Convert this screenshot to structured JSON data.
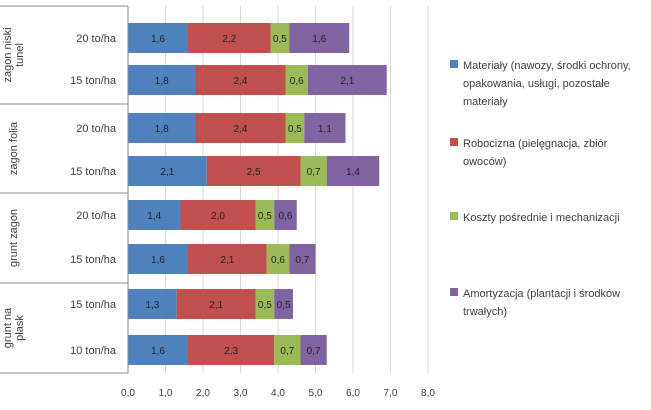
{
  "chart_data": {
    "type": "bar",
    "orientation": "horizontal",
    "stacked": true,
    "title": "",
    "xlabel": "",
    "ylabel": "",
    "xlim": [
      0,
      8
    ],
    "x_ticks": [
      "0,0",
      "1,0",
      "2,0",
      "3,0",
      "4,0",
      "5,0",
      "6,0",
      "7,0",
      "8,0"
    ],
    "grid": "vertical",
    "legend_position": "right",
    "groups": [
      {
        "name": "zagon niski tunel",
        "categories": [
          "20 to/ha",
          "15 ton/ha"
        ]
      },
      {
        "name": "zagon folia",
        "categories": [
          "20 to/ha",
          "15 ton/ha"
        ]
      },
      {
        "name": "grunt zagon",
        "categories": [
          "20 to/ha",
          "15 ton/ha"
        ]
      },
      {
        "name": "grunt na płask",
        "categories": [
          "15 ton/ha",
          "10 ton/ha"
        ]
      }
    ],
    "series": [
      {
        "name": "Materiały (nawozy, środki ochrony, opakowania, usługi, pozostałe materiały",
        "color": "#4f81bd",
        "values": [
          1.6,
          1.8,
          1.8,
          2.1,
          1.4,
          1.6,
          1.3,
          1.6
        ],
        "labels": [
          "1,6",
          "1,8",
          "1,8",
          "2,1",
          "1,4",
          "1,6",
          "1,3",
          "1,6"
        ]
      },
      {
        "name": "Robocizna (pielęgnacja, zbiór owoców)",
        "color": "#c0504d",
        "values": [
          2.2,
          2.4,
          2.4,
          2.5,
          2.0,
          2.1,
          2.1,
          2.3
        ],
        "labels": [
          "2,2",
          "2,4",
          "2,4",
          "2,5",
          "2,0",
          "2,1",
          "2,1",
          "2,3"
        ]
      },
      {
        "name": "Koszty pośrednie i mechanizacji",
        "color": "#9bbb59",
        "values": [
          0.5,
          0.6,
          0.5,
          0.7,
          0.5,
          0.6,
          0.5,
          0.7
        ],
        "labels": [
          "0,5",
          "0,6",
          "0,5",
          "0,7",
          "0,5",
          "0,6",
          "0,5",
          "0,7"
        ]
      },
      {
        "name": "Amortyzacja (plantacji i środków trwałych)",
        "color": "#8064a2",
        "values": [
          1.6,
          2.1,
          1.1,
          1.4,
          0.6,
          0.7,
          0.5,
          0.7
        ],
        "labels": [
          "1,6",
          "2,1",
          "1,1",
          "1,4",
          "0,6",
          "0,7",
          "0,5",
          "0,7"
        ]
      }
    ]
  }
}
